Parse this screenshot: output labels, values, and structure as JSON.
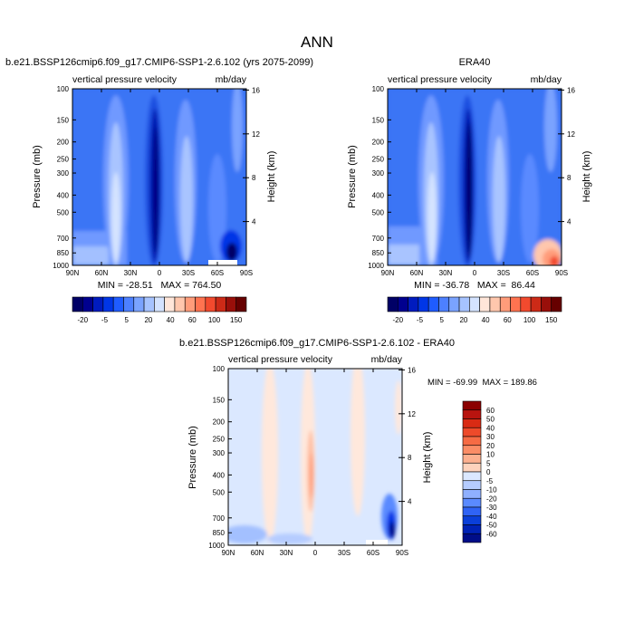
{
  "title": "ANN",
  "colors": {
    "palette": [
      "#000066",
      "#00008f",
      "#001bbf",
      "#0036e6",
      "#1f5cff",
      "#4d80ff",
      "#7aa3ff",
      "#a6c3ff",
      "#d4e3ff",
      "#ffe6d9",
      "#ffc7ad",
      "#ff9c7a",
      "#ff7350",
      "#f24a2e",
      "#cc2a17",
      "#990f0a",
      "#660000"
    ]
  },
  "chart_data": [
    {
      "type": "heatmap",
      "id": "model",
      "title": "b.e21.BSSP126cmip6.f09_g17.CMIP6-SSP1-2.6.102 (yrs 2075-2099)",
      "left_label": "vertical pressure velocity",
      "right_label": "mb/day",
      "ylabel": "Pressure (mb)",
      "y2label": "Height (km)",
      "x_ticks": [
        "90N",
        "60N",
        "30N",
        "0",
        "30S",
        "60S",
        "90S"
      ],
      "x_values": [
        90,
        60,
        30,
        0,
        -30,
        -60,
        -90
      ],
      "y_ticks": [
        "100",
        "150",
        "200",
        "250",
        "300",
        "400",
        "500",
        "700",
        "850",
        "1000"
      ],
      "y_values": [
        100,
        150,
        200,
        250,
        300,
        400,
        500,
        700,
        850,
        1000
      ],
      "y2_ticks": [
        "16",
        "12",
        "8",
        "4"
      ],
      "y2_values": [
        16,
        12,
        8,
        4
      ],
      "stats": "MIN = -28.51   MAX = 764.50",
      "colorbar_labels": [
        "-20",
        "-5",
        "5",
        "20",
        "40",
        "60",
        "100",
        "150"
      ]
    },
    {
      "type": "heatmap",
      "id": "obs",
      "title": "ERA40",
      "left_label": "vertical pressure velocity",
      "right_label": "mb/day",
      "ylabel": "Pressure (mb)",
      "y2label": "Height (km)",
      "x_ticks": [
        "90N",
        "60N",
        "30N",
        "0",
        "30S",
        "60S",
        "90S"
      ],
      "x_values": [
        90,
        60,
        30,
        0,
        -30,
        -60,
        -90
      ],
      "y_ticks": [
        "100",
        "150",
        "200",
        "250",
        "300",
        "400",
        "500",
        "700",
        "850",
        "1000"
      ],
      "y_values": [
        100,
        150,
        200,
        250,
        300,
        400,
        500,
        700,
        850,
        1000
      ],
      "y2_ticks": [
        "16",
        "12",
        "8",
        "4"
      ],
      "y2_values": [
        16,
        12,
        8,
        4
      ],
      "stats": "MIN = -36.78   MAX =  86.44",
      "colorbar_labels": [
        "-20",
        "-5",
        "5",
        "20",
        "40",
        "60",
        "100",
        "150"
      ]
    },
    {
      "type": "heatmap",
      "id": "diff",
      "title": "b.e21.BSSP126cmip6.f09_g17.CMIP6-SSP1-2.6.102 - ERA40",
      "left_label": "vertical pressure velocity",
      "right_label": "mb/day",
      "ylabel": "Pressure (mb)",
      "y2label": "Height (km)",
      "x_ticks": [
        "90N",
        "60N",
        "30N",
        "0",
        "30S",
        "60S",
        "90S"
      ],
      "x_values": [
        90,
        60,
        30,
        0,
        -30,
        -60,
        -90
      ],
      "y_ticks": [
        "100",
        "150",
        "200",
        "250",
        "300",
        "400",
        "500",
        "700",
        "850",
        "1000"
      ],
      "y_values": [
        100,
        150,
        200,
        250,
        300,
        400,
        500,
        700,
        850,
        1000
      ],
      "y2_ticks": [
        "16",
        "12",
        "8",
        "4"
      ],
      "y2_values": [
        16,
        12,
        8,
        4
      ],
      "stats": "MIN = -69.99  MAX = 189.86",
      "colorbar_labels": [
        "60",
        "50",
        "40",
        "30",
        "20",
        "10",
        "5",
        "0",
        "-5",
        "-10",
        "-20",
        "-30",
        "-40",
        "-50",
        "-60"
      ]
    }
  ]
}
